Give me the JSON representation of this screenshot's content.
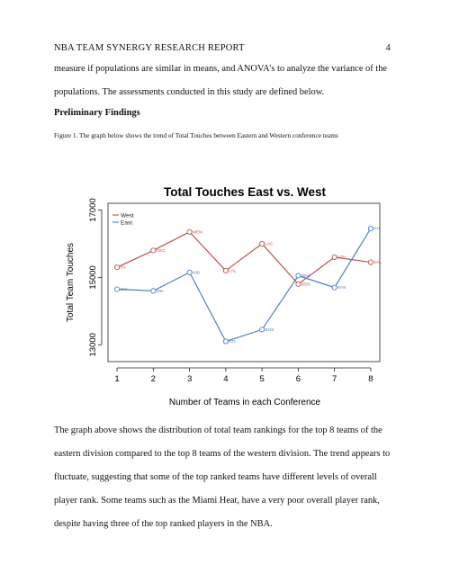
{
  "header": {
    "title": "NBA TEAM SYNERGY RESEARCH REPORT",
    "page_number": "4"
  },
  "para1": "measure if populations are similar in means, and ANOVA’s to analyze the variance of the populations. The assessments conducted in this study are defined below.",
  "heading": "Preliminary Findings",
  "caption": "Figure 1. The graph below shows the trend of Total Touches between Eastern and Western conference teams",
  "para2": "The graph above shows the distribution of total team rankings for the top 8 teams of the eastern division compared to the top 8 teams of the western division. The trend appears to fluctuate, suggesting that some of the top ranked teams have different levels of overall player rank. Some teams such as the Miami Heat, have a very poor overall player rank, despite having three of the top ranked players in the NBA.",
  "colors": {
    "west": "#c0504d",
    "east": "#4f81bd"
  },
  "chart_data": {
    "type": "line",
    "title": "Total Touches East vs. West",
    "xlabel": "Number of Teams in each Conference",
    "ylabel": "Total Team Touches",
    "x": [
      1,
      2,
      3,
      4,
      5,
      6,
      7,
      8
    ],
    "xticks": [
      "1",
      "2",
      "3",
      "4",
      "5",
      "6",
      "7",
      "8"
    ],
    "yticks": [
      13000,
      15000,
      17000
    ],
    "ylim": [
      12500,
      17200
    ],
    "xlim": [
      0.75,
      8.25
    ],
    "legend_position": "top-left",
    "series": [
      {
        "name": "West",
        "color": "#c0504d",
        "values": [
          15300,
          15800,
          16350,
          15200,
          16000,
          14800,
          15600,
          15450
        ],
        "labels": [
          "SA",
          "OKC",
          "MEM",
          "LAL",
          "LAC",
          "DEN",
          "UTH",
          "DAL"
        ]
      },
      {
        "name": "East",
        "color": "#4f81bd",
        "values": [
          14650,
          14600,
          15150,
          13100,
          13450,
          15050,
          14700,
          16450
        ],
        "labels": [
          "CHI",
          "MIA",
          "IND",
          "ATL",
          "BOS",
          "WAS",
          "NYK",
          "PHI"
        ]
      }
    ]
  }
}
